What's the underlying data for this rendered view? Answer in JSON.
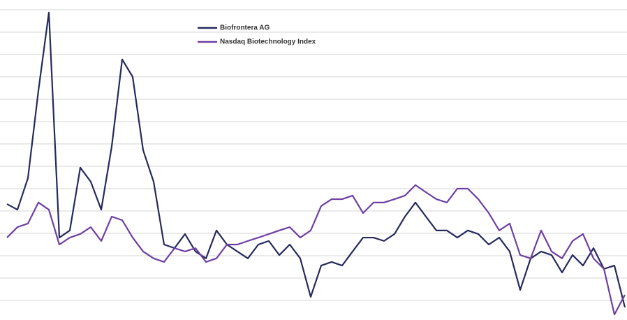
{
  "chart_data": {
    "type": "line",
    "ylim": [
      -0.875,
      13.4375
    ],
    "yticks": [
      0,
      1,
      2,
      3,
      4,
      5,
      6,
      7,
      8,
      9,
      10,
      11,
      12,
      13
    ],
    "grid": true,
    "legend": "top",
    "series": [
      {
        "name": "Biofrontera AG",
        "color": "#262a5c",
        "values": [
          4.31,
          4.06,
          5.47,
          9.38,
          12.88,
          2.81,
          3.13,
          5.94,
          5.31,
          4.06,
          6.88,
          10.78,
          10,
          6.72,
          5.31,
          2.5,
          2.34,
          2.97,
          2.19,
          1.88,
          3.13,
          2.5,
          2.19,
          1.88,
          2.5,
          2.66,
          2.03,
          2.5,
          1.88,
          0.16,
          1.56,
          1.72,
          1.56,
          2.19,
          2.81,
          2.81,
          2.66,
          2.97,
          3.75,
          4.38,
          3.75,
          3.13,
          3.13,
          2.81,
          3.13,
          2.97,
          2.5,
          2.81,
          2.19,
          0.47,
          1.88,
          2.19,
          2.03,
          1.25,
          2.03,
          1.56,
          2.34,
          1.41,
          1.56,
          -0.31
        ]
      },
      {
        "name": "Nasdaq Biotechnology Index",
        "color": "#6e3fa3",
        "values": [
          2.81,
          3.28,
          3.44,
          4.38,
          4.06,
          2.5,
          2.81,
          2.97,
          3.28,
          2.66,
          3.75,
          3.59,
          2.81,
          2.19,
          1.88,
          1.72,
          2.34,
          2.19,
          2.34,
          1.72,
          1.88,
          2.5,
          2.5,
          2.66,
          2.81,
          2.97,
          3.13,
          3.28,
          2.81,
          3.13,
          4.22,
          4.53,
          4.53,
          4.69,
          3.91,
          4.38,
          4.38,
          4.53,
          4.69,
          5.16,
          4.84,
          4.53,
          4.38,
          5,
          5,
          4.53,
          3.91,
          3.13,
          3.44,
          2.03,
          1.88,
          3.13,
          2.19,
          1.88,
          2.66,
          2.97,
          1.88,
          1.41,
          -0.63,
          0.25
        ]
      }
    ]
  }
}
